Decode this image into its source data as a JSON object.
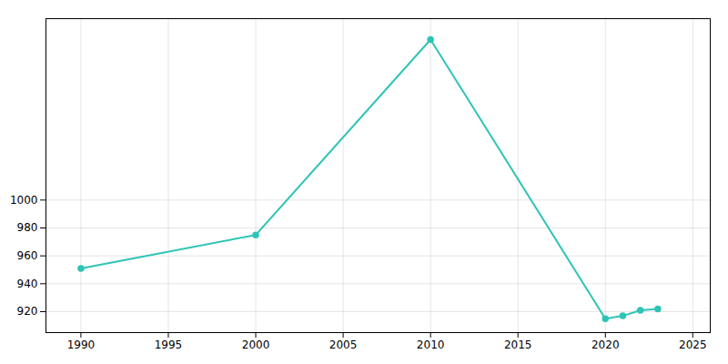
{
  "chart_data": {
    "type": "line",
    "x": [
      1990,
      2000,
      2010,
      2020,
      2021,
      2022,
      2023
    ],
    "values": [
      951,
      975,
      1115,
      915,
      917,
      921,
      922
    ],
    "color": "#2ec4b6",
    "marker": "circle",
    "xlim": [
      1988,
      2026
    ],
    "ylim": [
      905,
      1130
    ],
    "xticks": [
      1990,
      1995,
      2000,
      2005,
      2010,
      2015,
      2020,
      2025
    ],
    "yticks": [
      920,
      940,
      960,
      980,
      1000
    ],
    "grid": true
  }
}
